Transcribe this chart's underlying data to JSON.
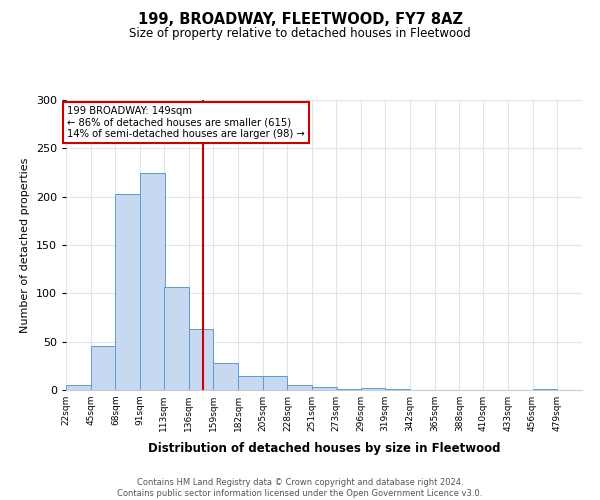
{
  "title": "199, BROADWAY, FLEETWOOD, FY7 8AZ",
  "subtitle": "Size of property relative to detached houses in Fleetwood",
  "xlabel": "Distribution of detached houses by size in Fleetwood",
  "ylabel": "Number of detached properties",
  "bin_labels": [
    "22sqm",
    "45sqm",
    "68sqm",
    "91sqm",
    "113sqm",
    "136sqm",
    "159sqm",
    "182sqm",
    "205sqm",
    "228sqm",
    "251sqm",
    "273sqm",
    "296sqm",
    "319sqm",
    "342sqm",
    "365sqm",
    "388sqm",
    "410sqm",
    "433sqm",
    "456sqm",
    "479sqm"
  ],
  "bar_values": [
    5,
    46,
    203,
    225,
    107,
    63,
    28,
    15,
    14,
    5,
    3,
    1,
    2,
    1,
    0,
    0,
    0,
    0,
    0,
    1,
    0
  ],
  "bar_color": "#c6d9f0",
  "bar_edge_color": "#5b9bd5",
  "bin_edges": [
    22,
    45,
    68,
    91,
    113,
    136,
    159,
    182,
    205,
    228,
    251,
    273,
    296,
    319,
    342,
    365,
    388,
    410,
    433,
    456,
    479
  ],
  "bin_width": 23,
  "property_value": 149,
  "marker_line_color": "#cc0000",
  "annotation_text": "199 BROADWAY: 149sqm\n← 86% of detached houses are smaller (615)\n14% of semi-detached houses are larger (98) →",
  "annotation_box_color": "#ffffff",
  "annotation_box_edge_color": "#cc0000",
  "ylim": [
    0,
    300
  ],
  "yticks": [
    0,
    50,
    100,
    150,
    200,
    250,
    300
  ],
  "footer_text": "Contains HM Land Registry data © Crown copyright and database right 2024.\nContains public sector information licensed under the Open Government Licence v3.0.",
  "background_color": "#ffffff",
  "grid_color": "#dce6f1"
}
